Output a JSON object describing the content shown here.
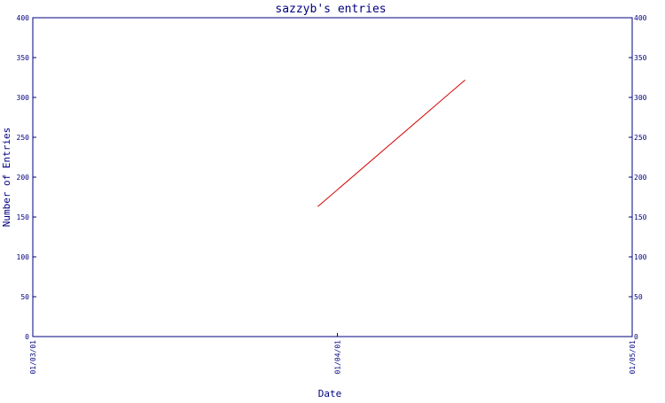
{
  "chart_data": {
    "type": "line",
    "title": "sazzyb's entries",
    "xlabel": "Date",
    "ylabel": "Number of Entries",
    "x_ticks": [
      "01/03/01",
      "01/04/01",
      "01/05/01"
    ],
    "x_range": [
      "2001-03-01",
      "2001-05-01"
    ],
    "ylim": [
      0,
      400
    ],
    "y_ticks": [
      0,
      50,
      100,
      150,
      200,
      250,
      300,
      350,
      400
    ],
    "grid": false,
    "legend": "none",
    "series": [
      {
        "x": [
          "2001-03-30",
          "2001-04-14"
        ],
        "y": [
          163,
          322
        ],
        "color": "#d40000"
      }
    ],
    "colors": {
      "axis": "#000080",
      "text": "#000080",
      "line": "#d40000",
      "background": "#ffffff"
    }
  }
}
